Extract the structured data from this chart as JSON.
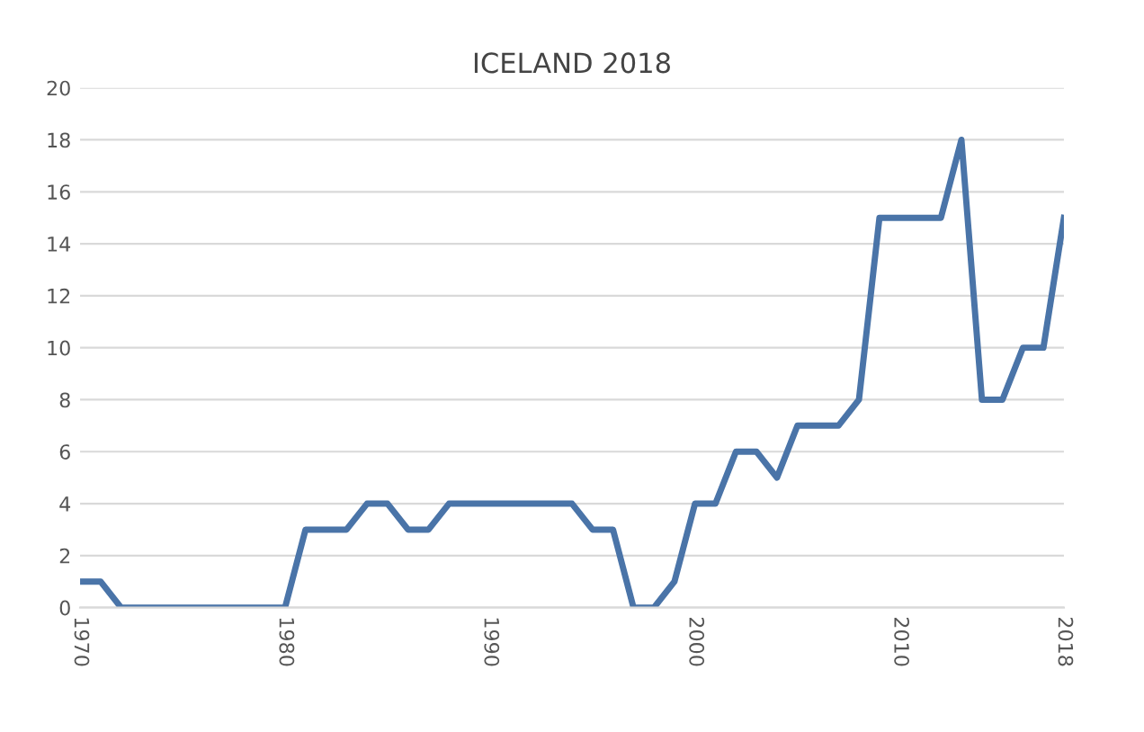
{
  "chart_data": {
    "type": "line",
    "title": "ICELAND 2018",
    "x": [
      1970,
      1971,
      1972,
      1973,
      1974,
      1975,
      1976,
      1977,
      1978,
      1979,
      1980,
      1981,
      1982,
      1983,
      1984,
      1985,
      1986,
      1987,
      1988,
      1989,
      1990,
      1991,
      1992,
      1993,
      1994,
      1995,
      1996,
      1997,
      1998,
      1999,
      2000,
      2001,
      2002,
      2003,
      2004,
      2005,
      2006,
      2007,
      2008,
      2009,
      2010,
      2011,
      2012,
      2013,
      2014,
      2015,
      2016,
      2017,
      2018
    ],
    "series": [
      {
        "color": "#4a74a8",
        "values": [
          1,
          1,
          0,
          0,
          0,
          0,
          0,
          0,
          0,
          0,
          0,
          3,
          3,
          3,
          4,
          4,
          3,
          3,
          4,
          4,
          4,
          4,
          4,
          4,
          4,
          3,
          3,
          0,
          0,
          1,
          4,
          4,
          6,
          6,
          5,
          7,
          7,
          7,
          8,
          15,
          15,
          15,
          15,
          18,
          8,
          8,
          10,
          10,
          15
        ]
      }
    ],
    "xlim": [
      1970,
      2018
    ],
    "xticks": [
      1970,
      1980,
      1990,
      2000,
      2010,
      2018
    ],
    "ylim": [
      0,
      20
    ],
    "yticks": [
      0,
      2,
      4,
      6,
      8,
      10,
      12,
      14,
      16,
      18,
      20
    ],
    "grid": "y",
    "legend": false,
    "marker": "none",
    "line_style": "solid"
  }
}
